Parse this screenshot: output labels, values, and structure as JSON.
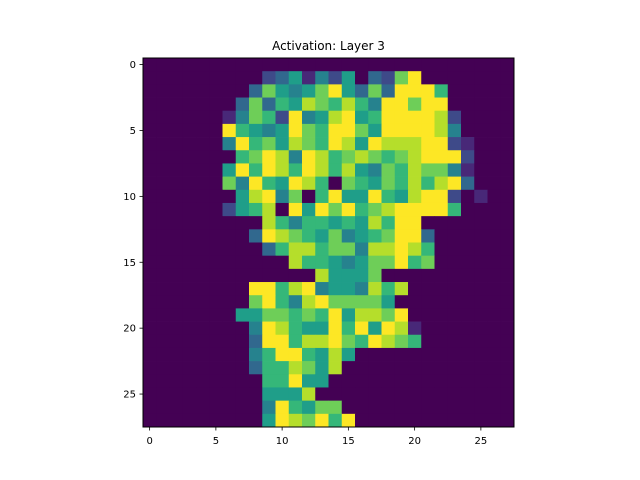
{
  "chart_data": {
    "type": "heatmap",
    "title": "Activation: Layer 3",
    "xlabel": "",
    "ylabel": "",
    "colormap": "viridis",
    "grid": false,
    "value_range": [
      0,
      1
    ],
    "x_ticks": [
      0,
      5,
      10,
      15,
      20,
      25
    ],
    "y_ticks": [
      0,
      5,
      10,
      15,
      20,
      25
    ],
    "x_tick_labels": [
      "0",
      "5",
      "10",
      "15",
      "20",
      "25"
    ],
    "y_tick_labels": [
      "0",
      "5",
      "10",
      "15",
      "20",
      "25"
    ],
    "rows": 28,
    "cols": 28,
    "values": [
      "0000000000000000000000000000",
      "0000000002351425032790000000",
      "0000000037545795373999600000",
      "0000000373658768649979900000",
      "0000001476294589569999820000",
      "0000009654597699759999840000",
      "0000004967587698598889921000",
      "0000000679849867876789992000",
      "0000005969869868547687741000",
      "0000007496598607657686893000",
      "0000000589470695596589920100",
      "0000002568095979678999960000",
      "0000000008646656586990000000",
      "0000000039876574567993000000",
      "0000000003688677488986000000",
      "0000000000086654577967000000",
      "0000000000000855570000000000",
      "0000000099689455486800000000",
      "0000000079648977775000000000",
      "0000000557767695887900000000",
      "0000000049865596959810000000",
      "0000000039968897698760000000",
      "0000000046996585000000000000",
      "0000000036687580000000000000",
      "0000000006695500000000000000",
      "0000000005558000000000000000",
      "0000000004965770000000000000",
      "0000000005987969000000000000"
    ]
  }
}
